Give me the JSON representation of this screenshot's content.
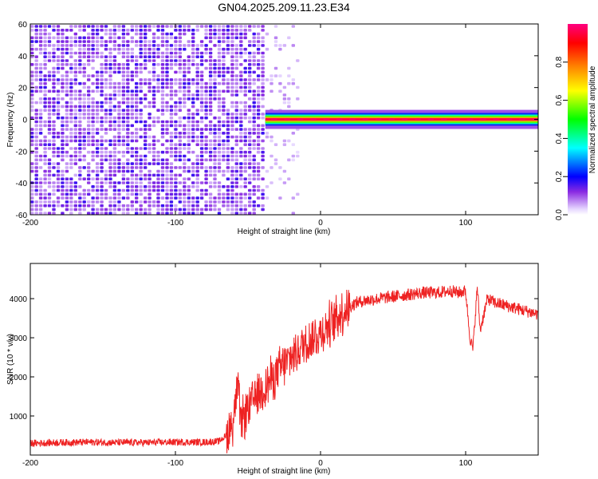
{
  "title": "GN04.2025.209.11.23.E34",
  "chart_data": [
    {
      "type": "heatmap",
      "xlabel": "Height of straight line (km)",
      "ylabel": "Frequency (Hz)",
      "xlim": [
        -200,
        150
      ],
      "ylim": [
        -60,
        60
      ],
      "x_ticks": [
        -200,
        -100,
        0,
        100
      ],
      "y_ticks": [
        60,
        40,
        20,
        0,
        -20,
        -40,
        -60
      ],
      "colorbar": {
        "label": "Normalized spectral amplitude",
        "range": [
          0.0,
          1.0
        ],
        "ticks": [
          0.0,
          0.2,
          0.4,
          0.6,
          0.8
        ],
        "colors": [
          "#ffffff",
          "#e0d0ff",
          "#8000ff",
          "#0000ff",
          "#00ffff",
          "#00ff00",
          "#ffff00",
          "#ff8000",
          "#ff0000",
          "#ff0080"
        ]
      },
      "regions": [
        {
          "x": [
            -200,
            -38
          ],
          "freq": [
            -60,
            60
          ],
          "amplitude": 0.12,
          "pattern": "broadband noise"
        },
        {
          "x": [
            -38,
            -15
          ],
          "freq": [
            -60,
            60
          ],
          "amplitude": 0.05,
          "pattern": "sparse noise"
        },
        {
          "x": [
            -38,
            150
          ],
          "freq": [
            -2,
            2
          ],
          "amplitude": 0.95,
          "pattern": "narrow carrier line"
        }
      ]
    },
    {
      "type": "line",
      "xlabel": "Height of straight line (km)",
      "ylabel": "SNR (10 * v/v)",
      "xlim": [
        -200,
        150
      ],
      "ylim": [
        0,
        4900
      ],
      "x_ticks": [
        -200,
        -100,
        0,
        100
      ],
      "y_ticks": [
        1000,
        2000,
        3000,
        4000
      ],
      "series": [
        {
          "color": "#ee2222",
          "x": [
            -200,
            -180,
            -160,
            -140,
            -120,
            -100,
            -80,
            -70,
            -65,
            -60,
            -57,
            -55,
            -50,
            -45,
            -40,
            -35,
            -30,
            -25,
            -20,
            -15,
            -10,
            -5,
            0,
            5,
            10,
            15,
            20,
            25,
            30,
            40,
            50,
            60,
            70,
            80,
            90,
            95,
            100,
            103,
            105,
            108,
            110,
            115,
            120,
            130,
            140,
            150
          ],
          "y": [
            300,
            320,
            330,
            320,
            320,
            330,
            330,
            350,
            500,
            900,
            1800,
            800,
            1200,
            1500,
            1700,
            1900,
            2100,
            2300,
            2500,
            2700,
            2900,
            3000,
            3100,
            3300,
            3500,
            3650,
            3800,
            3900,
            3950,
            4000,
            4050,
            4100,
            4150,
            4150,
            4200,
            4150,
            4200,
            3000,
            2700,
            4300,
            3200,
            4000,
            3900,
            3800,
            3700,
            3600
          ]
        }
      ]
    }
  ]
}
